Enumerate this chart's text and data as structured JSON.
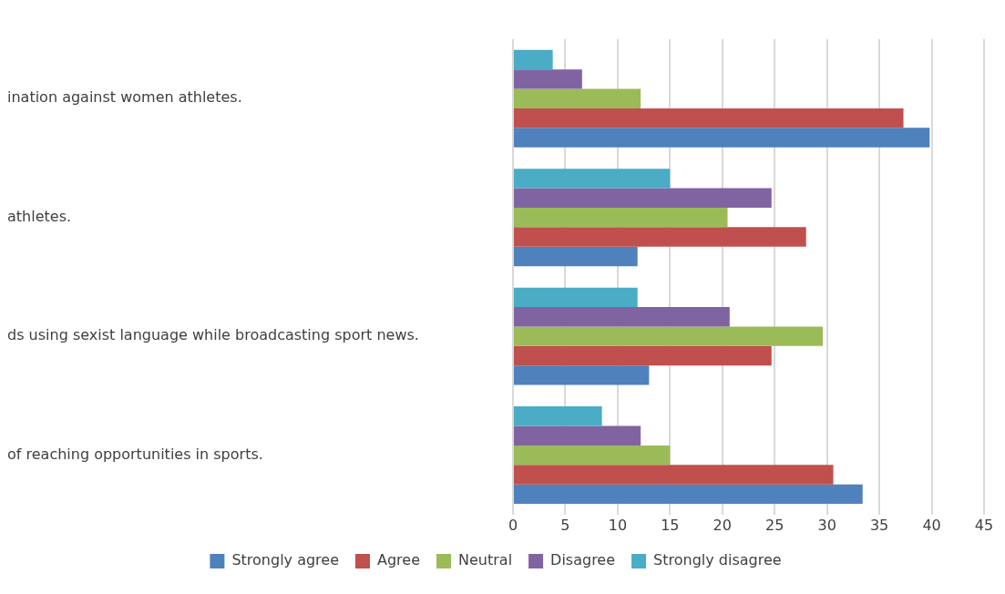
{
  "chart_data": {
    "type": "bar",
    "orientation": "horizontal",
    "categories": [
      "ination against women athletes.",
      "athletes.",
      "ds using sexist language while broadcasting sport news.",
      "of reaching opportunities in sports."
    ],
    "series": [
      {
        "name": "Strongly agree",
        "color": "#4f81bd",
        "values": [
          39.8,
          11.9,
          13.0,
          33.4
        ]
      },
      {
        "name": "Agree",
        "color": "#c0504d",
        "values": [
          37.3,
          28.0,
          24.7,
          30.6
        ]
      },
      {
        "name": "Neutral",
        "color": "#9bbb59",
        "values": [
          12.2,
          20.5,
          29.6,
          15.0
        ]
      },
      {
        "name": "Disagree",
        "color": "#8064a2",
        "values": [
          6.6,
          24.7,
          20.7,
          12.2
        ]
      },
      {
        "name": "Strongly disagree",
        "color": "#4bacc6",
        "values": [
          3.8,
          15.0,
          11.9,
          8.5
        ]
      }
    ],
    "xlim": [
      0,
      45
    ],
    "xticks": [
      0,
      5,
      10,
      15,
      20,
      25,
      30,
      35,
      40,
      45
    ],
    "grid": "x",
    "legend": "bottom"
  }
}
